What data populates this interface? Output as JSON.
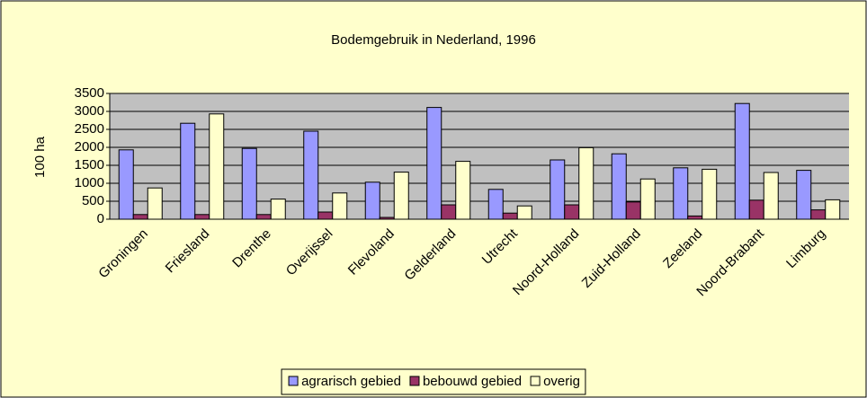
{
  "chart_data": {
    "type": "bar",
    "title": "Bodemgebruik in Nederland, 1996",
    "y_label": "100 ha",
    "categories": [
      "Groningen",
      "Friesland",
      "Drenthe",
      "Overijssel",
      "Flevoland",
      "Gelderland",
      "Utrecht",
      "Noord-Holland",
      "Zuid-Holland",
      "Zeeland",
      "Noord-Brabant",
      "Limburg"
    ],
    "series": [
      {
        "name": "agrarisch gebied",
        "color": "#9999ff",
        "values": [
          1930,
          2670,
          1970,
          2450,
          1030,
          3110,
          830,
          1650,
          1820,
          1430,
          3220,
          1360
        ]
      },
      {
        "name": "bebouwd gebied",
        "color": "#993366",
        "values": [
          130,
          130,
          130,
          200,
          50,
          400,
          170,
          400,
          480,
          90,
          530,
          260
        ]
      },
      {
        "name": "overig",
        "color": "#ffffcc",
        "values": [
          870,
          2930,
          560,
          730,
          1310,
          1610,
          370,
          1990,
          1120,
          1390,
          1300,
          540
        ]
      }
    ],
    "ylim": [
      0,
      3500
    ],
    "yticks": [
      0,
      500,
      1000,
      1500,
      2000,
      2500,
      3000,
      3500
    ],
    "grid": true,
    "legend": "bottom"
  }
}
